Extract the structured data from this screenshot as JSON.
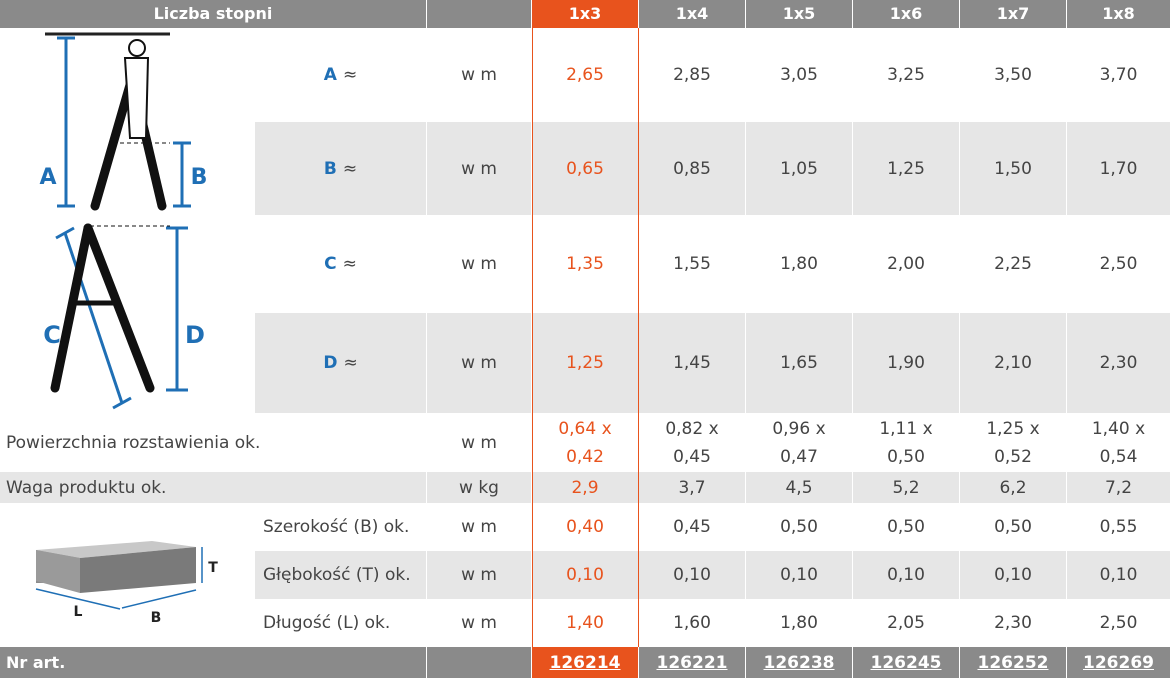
{
  "header": {
    "label": "Liczba stopni",
    "columns": [
      "1x3",
      "1x4",
      "1x5",
      "1x6",
      "1x7",
      "1x8"
    ]
  },
  "rows": [
    {
      "letter": "A",
      "label": "≈",
      "unit": "w m",
      "values": [
        "2,65",
        "2,85",
        "3,05",
        "3,25",
        "3,50",
        "3,70"
      ]
    },
    {
      "letter": "B",
      "label": "≈",
      "unit": "w m",
      "values": [
        "0,65",
        "0,85",
        "1,05",
        "1,25",
        "1,50",
        "1,70"
      ]
    },
    {
      "letter": "C",
      "label": "≈",
      "unit": "w m",
      "values": [
        "1,35",
        "1,55",
        "1,80",
        "2,00",
        "2,25",
        "2,50"
      ]
    },
    {
      "letter": "D",
      "label": "≈",
      "unit": "w m",
      "values": [
        "1,25",
        "1,45",
        "1,65",
        "1,90",
        "2,10",
        "2,30"
      ]
    },
    {
      "label": "Powierzchnia rozstawienia ok.",
      "unit": "w m",
      "values": [
        [
          "0,64 x",
          "0,42"
        ],
        [
          "0,82 x",
          "0,45"
        ],
        [
          "0,96 x",
          "0,47"
        ],
        [
          "1,11 x",
          "0,50"
        ],
        [
          "1,25 x",
          "0,52"
        ],
        [
          "1,40 x",
          "0,54"
        ]
      ]
    },
    {
      "label": "Waga produktu ok.",
      "unit": "w kg",
      "values": [
        "2,9",
        "3,7",
        "4,5",
        "5,2",
        "6,2",
        "7,2"
      ]
    },
    {
      "label": "Szerokość (B) ok.",
      "unit": "w m",
      "values": [
        "0,40",
        "0,45",
        "0,50",
        "0,50",
        "0,50",
        "0,55"
      ]
    },
    {
      "label": "Głębokość (T) ok.",
      "unit": "w m",
      "values": [
        "0,10",
        "0,10",
        "0,10",
        "0,10",
        "0,10",
        "0,10"
      ]
    },
    {
      "label": "Długość (L) ok.",
      "unit": "w m",
      "values": [
        "1,40",
        "1,60",
        "1,80",
        "2,05",
        "2,30",
        "2,50"
      ]
    }
  ],
  "footer": {
    "label": "Nr art.",
    "values": [
      "126214",
      "126221",
      "126238",
      "126245",
      "126252",
      "126269"
    ]
  },
  "diagram": {
    "ladder": [
      "A",
      "B",
      "C",
      "D"
    ],
    "box": [
      "T",
      "L",
      "B"
    ]
  }
}
